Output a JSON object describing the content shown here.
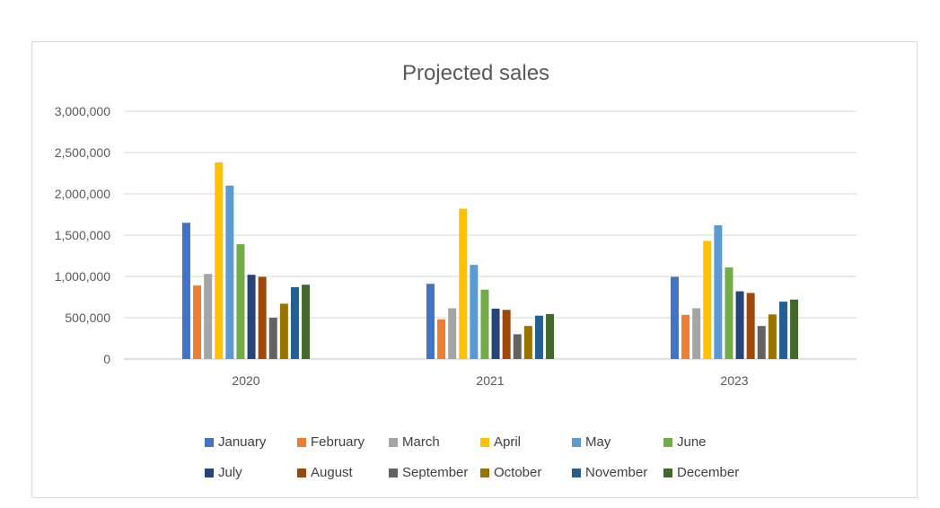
{
  "chart_data": {
    "type": "bar",
    "title": "Projected sales",
    "xlabel": "",
    "ylabel": "",
    "categories": [
      "2020",
      "2021",
      "2023"
    ],
    "ylim": [
      0,
      3000000
    ],
    "yticks": [
      0,
      500000,
      1000000,
      1500000,
      2000000,
      2500000,
      3000000
    ],
    "ytick_labels": [
      "0",
      "500,000",
      "1,000,000",
      "1,500,000",
      "2,000,000",
      "2,500,000",
      "3,000,000"
    ],
    "grid": true,
    "legend_position": "bottom",
    "series": [
      {
        "name": "January",
        "color": "#4472c4",
        "values": [
          1650000,
          910000,
          995000
        ]
      },
      {
        "name": "February",
        "color": "#ed7d31",
        "values": [
          890000,
          480000,
          535000
        ]
      },
      {
        "name": "March",
        "color": "#a5a5a5",
        "values": [
          1030000,
          615000,
          615000
        ]
      },
      {
        "name": "April",
        "color": "#ffc000",
        "values": [
          2380000,
          1820000,
          1430000
        ]
      },
      {
        "name": "May",
        "color": "#5b9bd5",
        "values": [
          2100000,
          1140000,
          1620000
        ]
      },
      {
        "name": "June",
        "color": "#70ad47",
        "values": [
          1390000,
          840000,
          1110000
        ]
      },
      {
        "name": "July",
        "color": "#264478",
        "values": [
          1020000,
          610000,
          820000
        ]
      },
      {
        "name": "August",
        "color": "#9e480e",
        "values": [
          995000,
          595000,
          800000
        ]
      },
      {
        "name": "September",
        "color": "#636363",
        "values": [
          500000,
          300000,
          400000
        ]
      },
      {
        "name": "October",
        "color": "#997300",
        "values": [
          670000,
          400000,
          540000
        ]
      },
      {
        "name": "November",
        "color": "#255e91",
        "values": [
          870000,
          525000,
          695000
        ]
      },
      {
        "name": "December",
        "color": "#43682b",
        "values": [
          900000,
          545000,
          720000
        ]
      }
    ]
  }
}
